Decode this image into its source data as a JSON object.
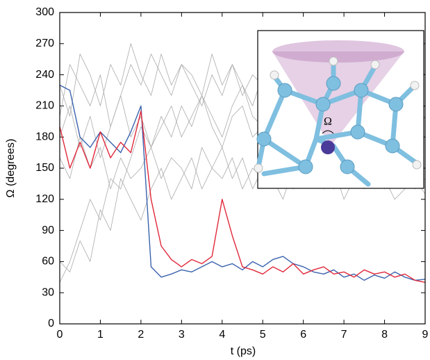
{
  "chart_data": {
    "type": "line",
    "xlabel": "t (ps)",
    "ylabel": "Ω (degrees)",
    "xlim": [
      0,
      9
    ],
    "ylim": [
      0,
      300
    ],
    "xticks": [
      0,
      1,
      2,
      3,
      4,
      5,
      6,
      7,
      8,
      9
    ],
    "yticks": [
      0,
      30,
      60,
      90,
      120,
      150,
      180,
      210,
      240,
      270,
      300
    ],
    "inset_label": "Ω",
    "x": [
      0,
      0.25,
      0.5,
      0.75,
      1,
      1.25,
      1.5,
      1.75,
      2,
      2.25,
      2.5,
      2.75,
      3,
      3.25,
      3.5,
      3.75,
      4,
      4.25,
      4.5,
      4.75,
      5,
      5.25,
      5.5,
      5.75,
      6,
      6.25,
      6.5,
      6.75,
      7,
      7.25,
      7.5,
      7.75,
      8,
      8.25,
      8.5,
      8.75,
      9
    ],
    "series": [
      {
        "color": "#aaaaaa",
        "values": [
          200,
          250,
          230,
          210,
          240,
          190,
          220,
          250,
          230,
          260,
          240,
          220,
          250,
          230,
          210,
          240,
          220,
          250,
          230,
          210,
          240,
          220,
          200,
          230,
          250,
          220,
          240,
          210,
          230,
          200,
          220,
          240,
          210,
          230,
          220,
          200,
          210
        ]
      },
      {
        "color": "#aaaaaa",
        "values": [
          180,
          210,
          170,
          200,
          160,
          190,
          220,
          180,
          200,
          170,
          190,
          210,
          180,
          200,
          220,
          190,
          170,
          200,
          210,
          180,
          190,
          170,
          200,
          180,
          210,
          190,
          170,
          200,
          180,
          190,
          210,
          180,
          170,
          200,
          190,
          180,
          200
        ]
      },
      {
        "color": "#aaaaaa",
        "values": [
          160,
          140,
          180,
          150,
          170,
          130,
          160,
          140,
          150,
          170,
          140,
          160,
          150,
          130,
          170,
          150,
          140,
          160,
          130,
          150,
          140,
          160,
          150,
          130,
          140,
          160,
          150,
          130,
          140,
          150,
          160,
          140,
          130,
          150,
          140,
          130,
          140
        ]
      },
      {
        "color": "#aaaaaa",
        "values": [
          40,
          60,
          90,
          120,
          100,
          140,
          130,
          160,
          190,
          170,
          200,
          180,
          210,
          190,
          220,
          200,
          180,
          210,
          230,
          200,
          190,
          220,
          200,
          180,
          210,
          190,
          200,
          220,
          190,
          210,
          200,
          180,
          190,
          200,
          210,
          190,
          200
        ]
      },
      {
        "color": "#aaaaaa",
        "values": [
          230,
          200,
          260,
          240,
          210,
          250,
          230,
          270,
          240,
          220,
          260,
          230,
          250,
          240,
          220,
          260,
          230,
          250,
          220,
          240,
          230,
          210,
          240,
          260,
          230,
          250,
          220,
          240,
          230,
          250,
          240,
          220,
          230,
          240,
          220,
          250,
          240
        ]
      },
      {
        "color": "#aaaaaa",
        "values": [
          60,
          50,
          80,
          60,
          110,
          90,
          140,
          120,
          100,
          130,
          150,
          120,
          140,
          160,
          130,
          150,
          170,
          140,
          160,
          130,
          150,
          140,
          120,
          150,
          160,
          140,
          130,
          150,
          120,
          140,
          130,
          150,
          140,
          120,
          130,
          140,
          125
        ]
      },
      {
        "color": "#3a62ad",
        "values": [
          230,
          225,
          180,
          170,
          185,
          175,
          165,
          185,
          210,
          55,
          45,
          48,
          52,
          50,
          55,
          60,
          55,
          58,
          52,
          60,
          55,
          62,
          65,
          58,
          55,
          50,
          48,
          52,
          45,
          48,
          42,
          47,
          44,
          50,
          45,
          42,
          43
        ]
      },
      {
        "color": "#e0283a",
        "values": [
          190,
          150,
          175,
          150,
          185,
          160,
          175,
          165,
          205,
          120,
          75,
          62,
          55,
          62,
          58,
          65,
          120,
          85,
          55,
          52,
          48,
          55,
          50,
          58,
          48,
          52,
          55,
          48,
          50,
          45,
          52,
          48,
          50,
          45,
          48,
          42,
          40
        ]
      }
    ]
  }
}
